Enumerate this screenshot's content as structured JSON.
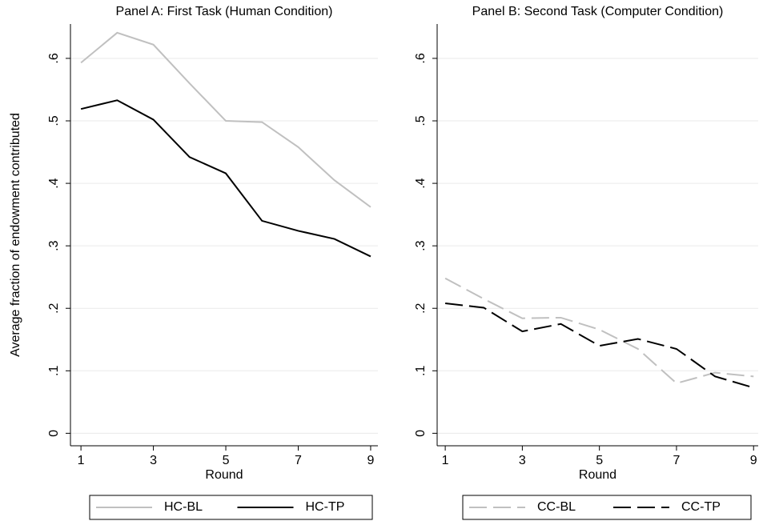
{
  "chart_data": [
    {
      "type": "line",
      "title": "Panel A: First Task (Human Condition)",
      "xlabel": "Round",
      "ylabel": "Average fraction of endowment contributed",
      "x": [
        1,
        2,
        3,
        4,
        5,
        6,
        7,
        8,
        9
      ],
      "series": [
        {
          "name": "HC-BL",
          "color": "#c0c0c0",
          "line_style": "solid",
          "values": [
            0.593,
            0.641,
            0.622,
            0.56,
            0.5,
            0.498,
            0.458,
            0.405,
            0.362
          ]
        },
        {
          "name": "HC-TP",
          "color": "#000000",
          "line_style": "solid",
          "values": [
            0.519,
            0.533,
            0.502,
            0.442,
            0.416,
            0.34,
            0.324,
            0.311,
            0.283
          ]
        }
      ],
      "xlim": [
        0.71,
        9.2
      ],
      "xticks": [
        1,
        3,
        5,
        7,
        9
      ],
      "ylim": [
        -0.02,
        0.655
      ],
      "yticks": [
        0,
        {
          "value": 0.1,
          "label": ".1"
        },
        {
          "value": 0.2,
          "label": ".2"
        },
        {
          "value": 0.3,
          "label": ".3"
        },
        {
          "value": 0.4,
          "label": ".4"
        },
        {
          "value": 0.5,
          "label": ".5"
        },
        {
          "value": 0.6,
          "label": ".6"
        }
      ],
      "grid": true,
      "legend": "bottom"
    },
    {
      "type": "line",
      "title": "Panel B: Second Task (Computer Condition)",
      "xlabel": "Round",
      "x": [
        1,
        2,
        3,
        4,
        5,
        6,
        7,
        8,
        9
      ],
      "series": [
        {
          "name": "CC-BL",
          "color": "#c0c0c0",
          "line_style": "dashed",
          "values": [
            0.248,
            0.215,
            0.184,
            0.185,
            0.166,
            0.135,
            0.08,
            0.097,
            0.091
          ]
        },
        {
          "name": "CC-TP",
          "color": "#000000",
          "line_style": "dashed",
          "values": [
            0.208,
            0.201,
            0.163,
            0.175,
            0.14,
            0.151,
            0.135,
            0.091,
            0.073
          ]
        }
      ],
      "xlim": [
        0.79,
        9.12
      ],
      "xticks": [
        1,
        3,
        5,
        7,
        9
      ],
      "ylim": [
        -0.02,
        0.655
      ],
      "yticks": [
        0,
        {
          "value": 0.1,
          "label": ".1"
        },
        {
          "value": 0.2,
          "label": ".2"
        },
        {
          "value": 0.3,
          "label": ".3"
        },
        {
          "value": 0.4,
          "label": ".4"
        },
        {
          "value": 0.5,
          "label": ".5"
        },
        {
          "value": 0.6,
          "label": ".6"
        }
      ],
      "grid": true,
      "legend": "bottom"
    }
  ]
}
